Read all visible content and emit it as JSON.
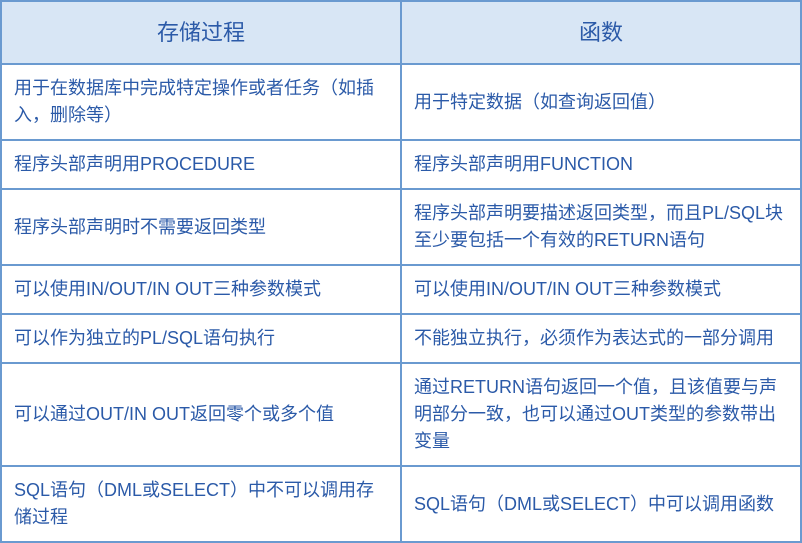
{
  "table": {
    "type": "table",
    "columns": [
      {
        "label": "存储过程",
        "width": "50%"
      },
      {
        "label": "函数",
        "width": "50%"
      }
    ],
    "rows": [
      [
        "用于在数据库中完成特定操作或者任务（如插入，删除等）",
        "用于特定数据（如查询返回值）"
      ],
      [
        "程序头部声明用PROCEDURE",
        "程序头部声明用FUNCTION"
      ],
      [
        "程序头部声明时不需要返回类型",
        "程序头部声明要描述返回类型，而且PL/SQL块至少要包括一个有效的RETURN语句"
      ],
      [
        "可以使用IN/OUT/IN OUT三种参数模式",
        "可以使用IN/OUT/IN OUT三种参数模式"
      ],
      [
        "可以作为独立的PL/SQL语句执行",
        "不能独立执行，必须作为表达式的一部分调用"
      ],
      [
        "可以通过OUT/IN OUT返回零个或多个值",
        "通过RETURN语句返回一个值，且该值要与声明部分一致，也可以通过OUT类型的参数带出变量"
      ],
      [
        "SQL语句（DML或SELECT）中不可以调用存储过程",
        "SQL语句（DML或SELECT）中可以调用函数"
      ]
    ],
    "styling": {
      "border_color": "#6a9ad0",
      "border_width": 2,
      "header_background": "#d8e6f5",
      "text_color": "#2b5aa8",
      "header_fontsize": 22,
      "cell_fontsize": 18,
      "background_color": "#ffffff",
      "font_family": "Microsoft YaHei"
    }
  }
}
